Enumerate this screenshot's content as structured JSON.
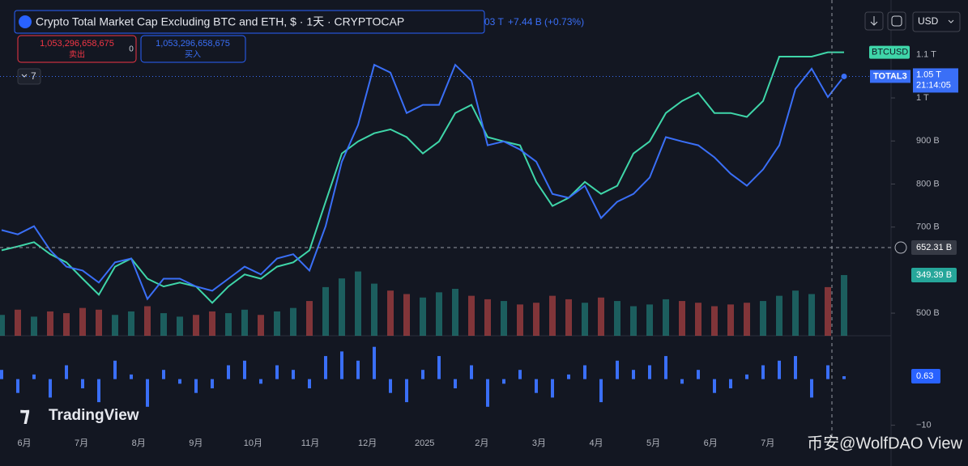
{
  "header": {
    "title": "Crypto Total Market Cap Excluding BTC and ETH, $ · 1天 · CRYPTOCAP",
    "last_value": "03 T",
    "change": "+7.44 B (+0.73%)",
    "sell_price": "1,053,296,658,675",
    "sell_label": "卖出",
    "spread": "0",
    "buy_price": "1,053,296,658,675",
    "buy_label": "买入",
    "indicator_count": "7",
    "currency": "USD"
  },
  "watermark": "TradingView",
  "footer_credit": "币安@WolfDAO View",
  "chart_data": {
    "type": "line",
    "series": [
      {
        "name": "TOTAL3",
        "color": "#3a6ff7",
        "last_label": "1.05 T",
        "time": "21:14:05",
        "values": [
          693,
          683,
          702,
          646,
          608,
          599,
          571,
          618,
          627,
          533,
          580,
          580,
          562,
          552,
          580,
          608,
          590,
          627,
          637,
          599,
          702,
          852,
          937,
          1077,
          1059,
          965,
          984,
          984,
          1077,
          1040,
          890,
          899,
          880,
          852,
          777,
          768,
          796,
          721,
          759,
          777,
          815,
          909,
          899,
          890,
          862,
          824,
          796,
          834,
          890,
          1021,
          1068,
          1002,
          1050
        ]
      },
      {
        "name": "BTCUSD",
        "color": "#3fd6a9",
        "values": [
          646,
          655,
          665,
          637,
          618,
          580,
          543,
          608,
          627,
          580,
          562,
          571,
          562,
          524,
          562,
          590,
          580,
          608,
          618,
          646,
          759,
          871,
          899,
          918,
          927,
          909,
          871,
          899,
          965,
          984,
          909,
          899,
          890,
          805,
          749,
          768,
          805,
          777,
          796,
          871,
          899,
          965,
          993,
          1012,
          965,
          965,
          956,
          993,
          1096,
          1096,
          1096,
          1106,
          1106
        ]
      }
    ],
    "ylim": [
      447.5,
      1227.5
    ],
    "yticks": [
      {
        "value": 1100,
        "label": "1.1 T"
      },
      {
        "value": 1000,
        "label": "1 T"
      },
      {
        "value": 900,
        "label": "900 B"
      },
      {
        "value": 800,
        "label": "800 B"
      },
      {
        "value": 700,
        "label": "700 B"
      },
      {
        "value": 500,
        "label": "500 B"
      }
    ],
    "x_labels": [
      "6月",
      "7月",
      "8月",
      "9月",
      "10月",
      "11月",
      "12月",
      "2025",
      "2月",
      "3月",
      "4月",
      "5月",
      "6月",
      "7月"
    ],
    "crosshair": {
      "value": 652.31,
      "label": "652.31 B"
    },
    "volume": {
      "last_label": "349.39 B",
      "values": [
        120,
        150,
        110,
        140,
        130,
        160,
        150,
        120,
        140,
        170,
        130,
        110,
        120,
        140,
        130,
        150,
        120,
        140,
        160,
        200,
        280,
        330,
        370,
        300,
        260,
        240,
        220,
        250,
        270,
        230,
        210,
        200,
        180,
        190,
        230,
        210,
        190,
        220,
        200,
        170,
        180,
        210,
        200,
        190,
        170,
        180,
        190,
        200,
        230,
        260,
        240,
        280,
        349.39
      ]
    },
    "oscillator": {
      "yticks": [
        {
          "value": -10,
          "label": "−10"
        }
      ],
      "values": [
        2,
        -3,
        1,
        -4,
        3,
        -2,
        -5,
        4,
        1,
        -6,
        2,
        -1,
        -3,
        -2,
        3,
        4,
        -1,
        3,
        2,
        -2,
        5,
        6,
        4,
        7,
        -3,
        -5,
        2,
        5,
        -2,
        3,
        -6,
        -1,
        2,
        -3,
        -4,
        1,
        3,
        -5,
        4,
        2,
        3,
        5,
        -1,
        2,
        -3,
        -2,
        1,
        3,
        4,
        5,
        -4,
        3,
        0.63
      ]
    }
  }
}
